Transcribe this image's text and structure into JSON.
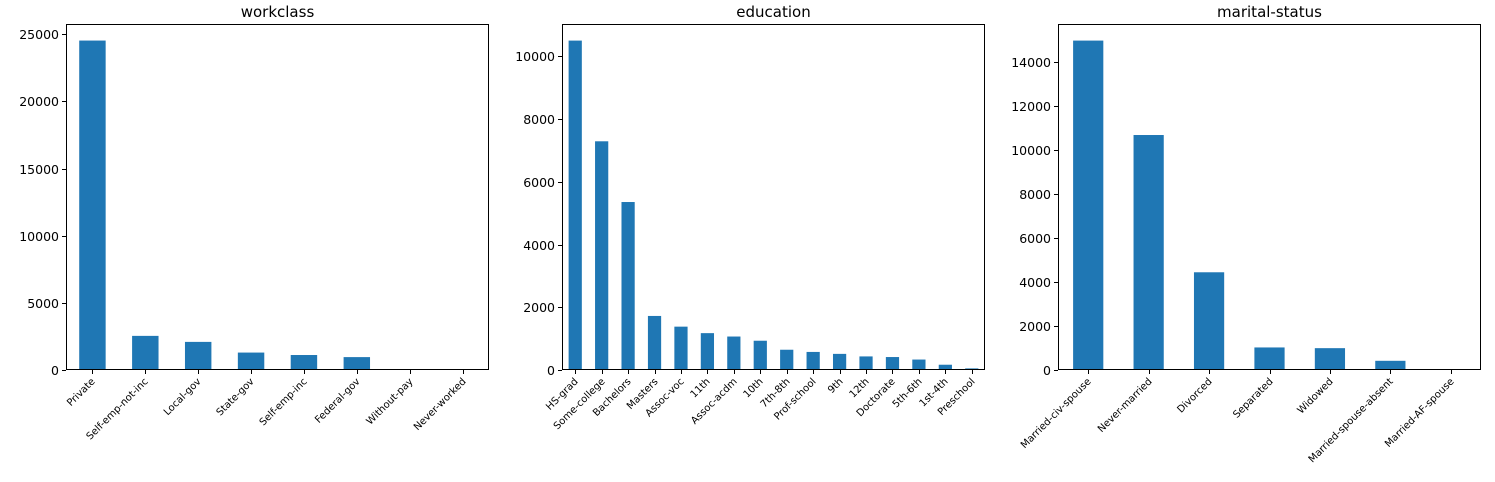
{
  "chart_data": [
    {
      "type": "bar",
      "title": "workclass",
      "color": "#1f77b4",
      "categories": [
        "Private",
        "Self-emp-not-inc",
        "Local-gov",
        "State-gov",
        "Self-emp-inc",
        "Federal-gov",
        "Without-pay",
        "Never-worked"
      ],
      "values": [
        24532,
        2541,
        2093,
        1298,
        1116,
        960,
        14,
        7
      ],
      "ylim": [
        0,
        25765
      ],
      "yticks": [
        0,
        5000,
        10000,
        15000,
        20000,
        25000
      ],
      "ytick_labels": [
        "0",
        "5000",
        "10000",
        "15000",
        "20000",
        "25000"
      ]
    },
    {
      "type": "bar",
      "title": "education",
      "color": "#1f77b4",
      "categories": [
        "HS-grad",
        "Some-college",
        "Bachelors",
        "Masters",
        "Assoc-voc",
        "11th",
        "Assoc-acdm",
        "10th",
        "7th-8th",
        "Prof-school",
        "9th",
        "12th",
        "Doctorate",
        "5th-6th",
        "1st-4th",
        "Preschool"
      ],
      "values": [
        10501,
        7291,
        5355,
        1723,
        1382,
        1175,
        1067,
        933,
        646,
        576,
        514,
        433,
        413,
        333,
        168,
        51
      ],
      "ylim": [
        0,
        11030
      ],
      "yticks": [
        0,
        2000,
        4000,
        6000,
        8000,
        10000
      ],
      "ytick_labels": [
        "0",
        "2000",
        "4000",
        "6000",
        "8000",
        "10000"
      ]
    },
    {
      "type": "bar",
      "title": "marital-status",
      "color": "#1f77b4",
      "categories": [
        "Married-civ-spouse",
        "Never-married",
        "Divorced",
        "Separated",
        "Widowed",
        "Married-spouse-absent",
        "Married-AF-spouse"
      ],
      "values": [
        14976,
        10683,
        4443,
        1025,
        993,
        418,
        23
      ],
      "ylim": [
        0,
        15730
      ],
      "yticks": [
        0,
        2000,
        4000,
        6000,
        8000,
        10000,
        12000,
        14000
      ],
      "ytick_labels": [
        "0",
        "2000",
        "4000",
        "6000",
        "8000",
        "10000",
        "12000",
        "14000"
      ]
    }
  ]
}
